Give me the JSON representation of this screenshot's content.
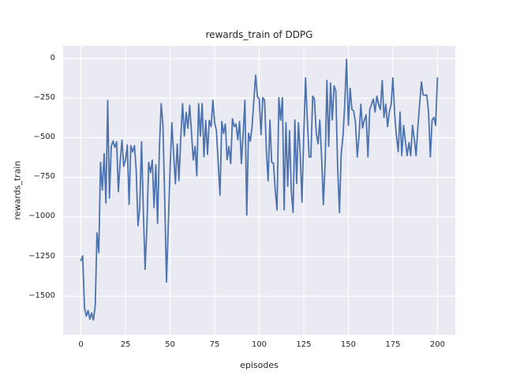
{
  "figure": {
    "title": "rewards_train of DDPG",
    "xlabel": "episodes",
    "ylabel": "rewards_train"
  },
  "chart_data": {
    "type": "line",
    "title": "rewards_train of DDPG",
    "xlabel": "episodes",
    "ylabel": "rewards_train",
    "x_ticks": [
      0,
      25,
      50,
      75,
      100,
      125,
      150,
      175,
      200
    ],
    "y_ticks": [
      0,
      -250,
      -500,
      -750,
      -1000,
      -1250,
      -1500
    ],
    "xlim": [
      -10,
      210
    ],
    "ylim": [
      -1743,
      80
    ],
    "grid": true,
    "legend": false,
    "background_color": "#eaeaf2",
    "grid_color": "#ffffff",
    "text_color": "#262626",
    "series": [
      {
        "name": "rewards_train",
        "color": "#4c72b0",
        "x_start": 0,
        "x_step": 1,
        "values": [
          -1275,
          -1245,
          -1575,
          -1625,
          -1590,
          -1645,
          -1605,
          -1650,
          -1560,
          -1100,
          -1225,
          -655,
          -830,
          -600,
          -912,
          -265,
          -880,
          -555,
          -520,
          -560,
          -525,
          -840,
          -650,
          -515,
          -680,
          -640,
          -545,
          -920,
          -550,
          -590,
          -550,
          -705,
          -1055,
          -940,
          -525,
          -970,
          -1330,
          -1060,
          -655,
          -720,
          -640,
          -940,
          -670,
          -1040,
          -560,
          -285,
          -420,
          -900,
          -1410,
          -1050,
          -700,
          -405,
          -610,
          -790,
          -540,
          -770,
          -500,
          -285,
          -490,
          -340,
          -440,
          -295,
          -470,
          -640,
          -555,
          -740,
          -285,
          -490,
          -285,
          -620,
          -390,
          -605,
          -390,
          -430,
          -263,
          -405,
          -455,
          -655,
          -863,
          -397,
          -472,
          -413,
          -638,
          -555,
          -663,
          -380,
          -430,
          -413,
          -513,
          -397,
          -663,
          -472,
          -263,
          -988,
          -472,
          -522,
          -430,
          -263,
          -105,
          -240,
          -255,
          -480,
          -247,
          -263,
          -572,
          -772,
          -388,
          -655,
          -660,
          -830,
          -955,
          -247,
          -388,
          -247,
          -955,
          -405,
          -805,
          -455,
          -838,
          -971,
          -388,
          -788,
          -405,
          -605,
          -905,
          -480,
          -122,
          -388,
          -622,
          -622,
          -238,
          -255,
          -472,
          -538,
          -388,
          -622,
          -922,
          -655,
          -138,
          -555,
          -155,
          -388,
          -172,
          -205,
          -688,
          -972,
          -605,
          -488,
          -288,
          -5,
          -422,
          -188,
          -322,
          -330,
          -405,
          -622,
          -488,
          -288,
          -438,
          -388,
          -355,
          -622,
          -322,
          -290,
          -255,
          -338,
          -238,
          -290,
          -322,
          -138,
          -372,
          -288,
          -430,
          -338,
          -290,
          -122,
          -355,
          -488,
          -588,
          -338,
          -613,
          -422,
          -522,
          -613,
          -530,
          -613,
          -422,
          -505,
          -613,
          -430,
          -288,
          -147,
          -230,
          -232,
          -230,
          -338,
          -622,
          -388,
          -372,
          -422,
          -122
        ]
      }
    ]
  }
}
